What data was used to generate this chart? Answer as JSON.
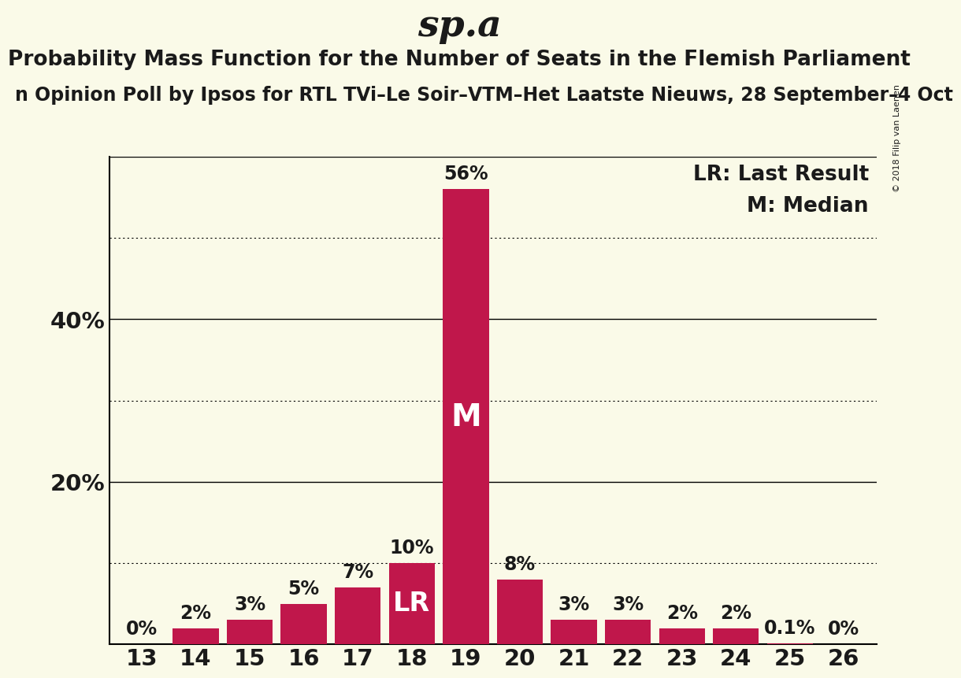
{
  "title": "sp.a",
  "subtitle": "Probability Mass Function for the Number of Seats in the Flemish Parliament",
  "sub_subtitle": "n Opinion Poll by Ipsos for RTL TVi–Le Soir–VTM–Het Laatste Nieuws, 28 September–4 Oct",
  "copyright": "© 2018 Filip van Laenen",
  "seats": [
    13,
    14,
    15,
    16,
    17,
    18,
    19,
    20,
    21,
    22,
    23,
    24,
    25,
    26
  ],
  "values": [
    0.0,
    2.0,
    3.0,
    5.0,
    7.0,
    10.0,
    56.0,
    8.0,
    3.0,
    3.0,
    2.0,
    2.0,
    0.1,
    0.0
  ],
  "bar_color": "#C0174B",
  "background_color": "#FAFAE8",
  "text_color": "#1a1a1a",
  "last_result_seat": 18,
  "median_seat": 19,
  "ylim": [
    0,
    60
  ],
  "yticks_solid": [
    20,
    40,
    60
  ],
  "yticks_dotted": [
    10,
    30,
    50
  ],
  "ytick_labels": [
    20,
    40
  ],
  "legend_lr": "LR: Last Result",
  "legend_m": "M: Median",
  "title_fontsize": 34,
  "subtitle_fontsize": 19,
  "sub_subtitle_fontsize": 17,
  "tick_fontsize": 21,
  "ytick_fontsize": 21,
  "bar_label_fontsize": 17,
  "legend_fontsize": 19,
  "lr_fontsize": 24,
  "m_fontsize": 28
}
